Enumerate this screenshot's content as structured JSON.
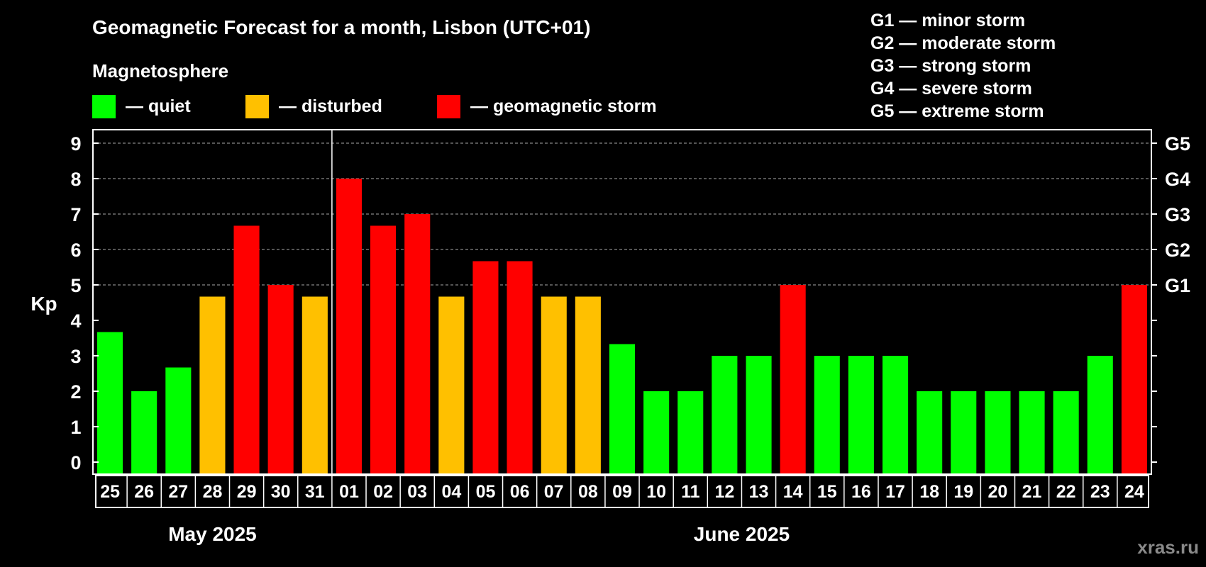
{
  "chart_data": {
    "type": "bar",
    "title": "Geomagnetic Forecast for a month, Lisbon (UTC+01)",
    "subtitle": "Magnetosphere",
    "ylabel": "Kp",
    "ylim": [
      0,
      9
    ],
    "yticks": [
      "0",
      "1",
      "2",
      "3",
      "4",
      "5",
      "6",
      "7",
      "8",
      "9"
    ],
    "grid": "dashed horizontal lines at Kp 5 to 9",
    "legend": [
      {
        "label": "— quiet",
        "color": "#00ff00"
      },
      {
        "label": "— disturbed",
        "color": "#ffc000"
      },
      {
        "label": "— geomagnetic storm",
        "color": "#ff0000"
      }
    ],
    "storm_scale_legend": [
      "G1 — minor storm",
      "G2 — moderate storm",
      "G3 — strong storm",
      "G4 — severe storm",
      "G5 — extreme storm"
    ],
    "right_axis": [
      {
        "label": "G1",
        "kp": 5
      },
      {
        "label": "G2",
        "kp": 6
      },
      {
        "label": "G3",
        "kp": 7
      },
      {
        "label": "G4",
        "kp": 8
      },
      {
        "label": "G5",
        "kp": 9
      }
    ],
    "months": [
      {
        "label": "May 2025",
        "days": 7
      },
      {
        "label": "June 2025",
        "days": 24
      }
    ],
    "categories": [
      "25",
      "26",
      "27",
      "28",
      "29",
      "30",
      "31",
      "01",
      "02",
      "03",
      "04",
      "05",
      "06",
      "07",
      "08",
      "09",
      "10",
      "11",
      "12",
      "13",
      "14",
      "15",
      "16",
      "17",
      "18",
      "19",
      "20",
      "21",
      "22",
      "23",
      "24"
    ],
    "values": [
      3.67,
      2,
      2.67,
      4.67,
      6.67,
      5,
      4.67,
      8,
      6.67,
      7,
      4.67,
      5.67,
      5.67,
      4.67,
      4.67,
      3.33,
      2,
      2,
      3,
      3,
      5,
      3,
      3,
      3,
      2,
      2,
      2,
      2,
      2,
      3,
      5
    ],
    "status": [
      "quiet",
      "quiet",
      "quiet",
      "disturbed",
      "storm",
      "storm",
      "disturbed",
      "storm",
      "storm",
      "storm",
      "disturbed",
      "storm",
      "storm",
      "disturbed",
      "disturbed",
      "quiet",
      "quiet",
      "quiet",
      "quiet",
      "quiet",
      "storm",
      "quiet",
      "quiet",
      "quiet",
      "quiet",
      "quiet",
      "quiet",
      "quiet",
      "quiet",
      "quiet",
      "storm"
    ],
    "colors": {
      "quiet": "#00ff00",
      "disturbed": "#ffc000",
      "storm": "#ff0000",
      "background": "#000000",
      "axis": "#ffffff",
      "grid": "#888888"
    }
  },
  "watermark": "xras.ru"
}
